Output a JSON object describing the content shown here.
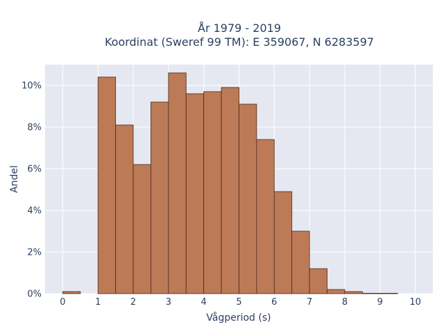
{
  "chart_data": {
    "type": "bar",
    "title_line1": "År 1979 - 2019",
    "title_line2": "Koordinat (Sweref 99 TM): E 359067, N 6283597",
    "xlabel": "Vågperiod (s)",
    "ylabel": "Andel",
    "bin_width": 0.5,
    "bins": [
      {
        "x0": 0.0,
        "value": 0.1
      },
      {
        "x0": 1.0,
        "value": 10.4
      },
      {
        "x0": 1.5,
        "value": 8.1
      },
      {
        "x0": 2.0,
        "value": 6.2
      },
      {
        "x0": 2.5,
        "value": 9.2
      },
      {
        "x0": 3.0,
        "value": 10.6
      },
      {
        "x0": 3.5,
        "value": 9.6
      },
      {
        "x0": 4.0,
        "value": 9.7
      },
      {
        "x0": 4.5,
        "value": 9.9
      },
      {
        "x0": 5.0,
        "value": 9.1
      },
      {
        "x0": 5.5,
        "value": 7.4
      },
      {
        "x0": 6.0,
        "value": 4.9
      },
      {
        "x0": 6.5,
        "value": 3.0
      },
      {
        "x0": 7.0,
        "value": 1.2
      },
      {
        "x0": 7.5,
        "value": 0.2
      },
      {
        "x0": 8.0,
        "value": 0.1
      },
      {
        "x0": 8.5,
        "value": 0.02
      },
      {
        "x0": 9.0,
        "value": 0.02
      }
    ],
    "xlim": [
      -0.5,
      10.5
    ],
    "ylim": [
      0,
      11.0
    ],
    "x_ticks": [
      0,
      1,
      2,
      3,
      4,
      5,
      6,
      7,
      8,
      9,
      10
    ],
    "x_tick_labels": [
      "0",
      "1",
      "2",
      "3",
      "4",
      "5",
      "6",
      "7",
      "8",
      "9",
      "10"
    ],
    "y_ticks": [
      0,
      2,
      4,
      6,
      8,
      10
    ],
    "y_tick_labels": [
      "0%",
      "2%",
      "4%",
      "6%",
      "8%",
      "10%"
    ],
    "grid": true,
    "colors": {
      "bar_fill": "#bd7a56",
      "bar_stroke": "#4a2a1a",
      "plot_bg": "#e5e8f0",
      "grid": "#ffffff"
    }
  }
}
